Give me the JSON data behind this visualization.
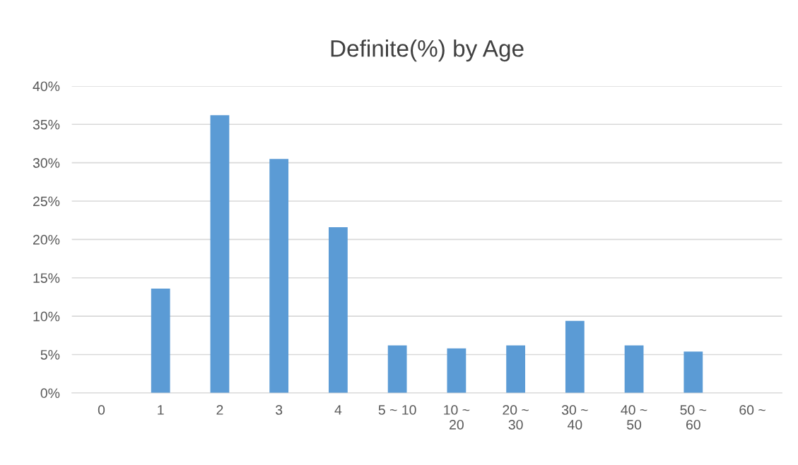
{
  "chart_data": {
    "type": "bar",
    "title": "Definite(%) by Age",
    "categories": [
      "0",
      "1",
      "2",
      "3",
      "4",
      "5 ~ 10",
      "10 ~ 20",
      "20 ~ 30",
      "30 ~ 40",
      "40 ~ 50",
      "50 ~ 60",
      "60 ~"
    ],
    "values": [
      0,
      13.6,
      36.2,
      30.5,
      21.6,
      6.2,
      5.8,
      6.2,
      9.4,
      6.2,
      5.4,
      0
    ],
    "color": "#5b9bd5",
    "ylim": [
      0,
      40
    ],
    "yticks": [
      {
        "value": 0,
        "label": "0%"
      },
      {
        "value": 5,
        "label": "5%"
      },
      {
        "value": 10,
        "label": "10%"
      },
      {
        "value": 15,
        "label": "15%"
      },
      {
        "value": 20,
        "label": "20%"
      },
      {
        "value": 25,
        "label": "25%"
      },
      {
        "value": 30,
        "label": "30%"
      },
      {
        "value": 35,
        "label": "35%"
      },
      {
        "value": 40,
        "label": "40%"
      }
    ],
    "grid": "y"
  }
}
